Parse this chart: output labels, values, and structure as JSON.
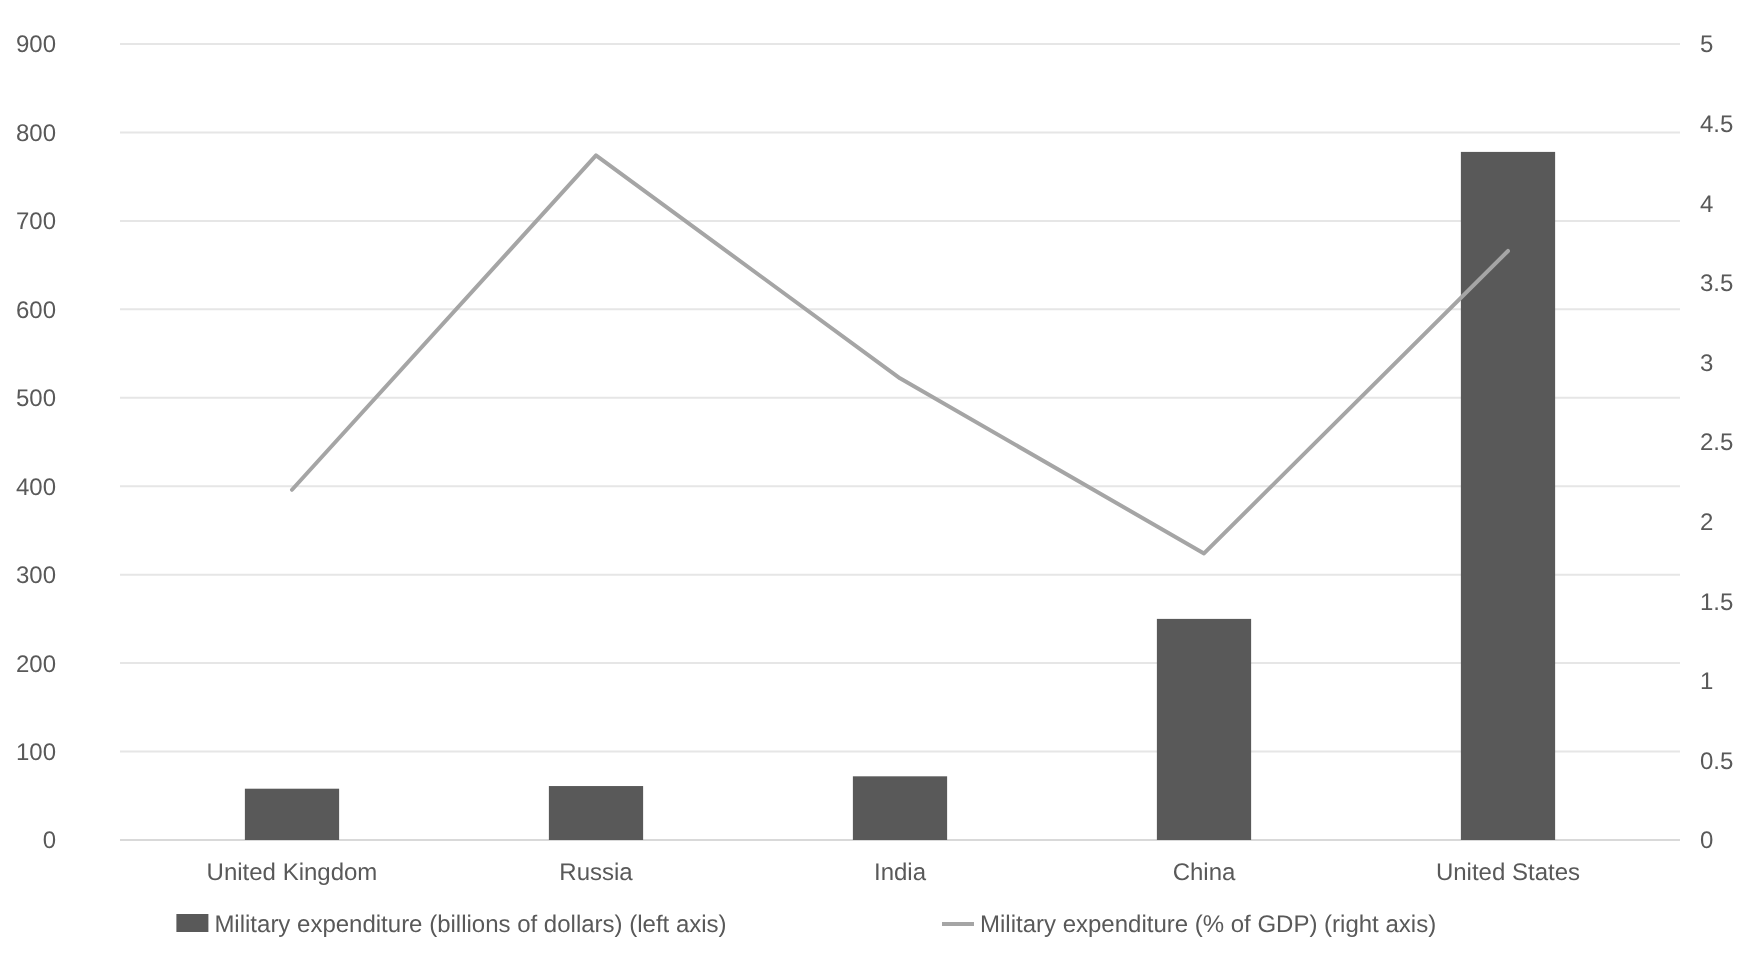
{
  "chart_data": {
    "type": "bar",
    "categories": [
      "United Kingdom",
      "Russia",
      "India",
      "China",
      "United States"
    ],
    "series": [
      {
        "name": "Military expenditure (billions of dollars) (left axis)",
        "color": "#595959",
        "values": [
          58,
          61,
          72,
          250,
          778
        ]
      },
      {
        "name": "Military expenditure (% of GDP) (right axis)",
        "type": "line",
        "axis": "y2",
        "color": "#a5a5a5",
        "values": [
          2.2,
          4.3,
          2.9,
          1.8,
          3.7
        ]
      }
    ],
    "ylim": [
      0,
      900
    ],
    "yticks": [
      0,
      100,
      200,
      300,
      400,
      500,
      600,
      700,
      800,
      900
    ],
    "y2lim": [
      0,
      5
    ],
    "y2ticks": [
      0,
      0.5,
      1,
      1.5,
      2,
      2.5,
      3,
      3.5,
      4,
      4.5,
      5
    ],
    "grid": "y",
    "legend": "bottom"
  }
}
